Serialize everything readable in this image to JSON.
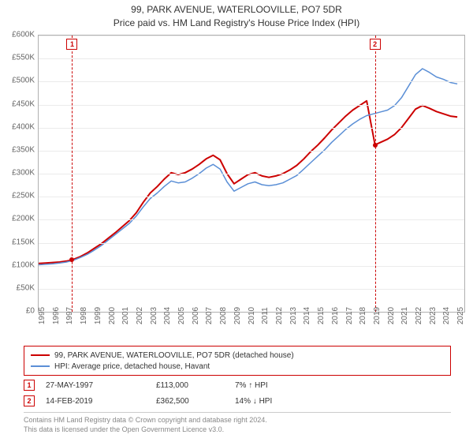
{
  "title": {
    "line1": "99, PARK AVENUE, WATERLOOVILLE, PO7 5DR",
    "line2": "Price paid vs. HM Land Registry's House Price Index (HPI)"
  },
  "chart": {
    "type": "line",
    "background_color": "#ffffff",
    "grid_color": "#ebebeb",
    "border_color": "#b0b0b0",
    "ylim": [
      0,
      600000
    ],
    "ytick_step": 50000,
    "y_ticks": [
      "£0",
      "£50K",
      "£100K",
      "£150K",
      "£200K",
      "£250K",
      "£300K",
      "£350K",
      "£400K",
      "£450K",
      "£500K",
      "£550K",
      "£600K"
    ],
    "x_ticks": [
      "1995",
      "1996",
      "1997",
      "1998",
      "1999",
      "2000",
      "2001",
      "2002",
      "2003",
      "2004",
      "2005",
      "2006",
      "2007",
      "2008",
      "2009",
      "2010",
      "2011",
      "2012",
      "2013",
      "2014",
      "2015",
      "2016",
      "2017",
      "2018",
      "2019",
      "2020",
      "2021",
      "2022",
      "2023",
      "2024",
      "2025"
    ],
    "xlim": [
      1995,
      2025.5
    ],
    "series": [
      {
        "name": "property",
        "label": "99, PARK AVENUE, WATERLOOVILLE, PO7 5DR (detached house)",
        "color": "#cc0000",
        "line_width": 2,
        "data": [
          [
            1995.0,
            105000
          ],
          [
            1995.5,
            106000
          ],
          [
            1996.0,
            107000
          ],
          [
            1996.5,
            108000
          ],
          [
            1997.0,
            110000
          ],
          [
            1997.4,
            113000
          ],
          [
            1997.5,
            114000
          ],
          [
            1998.0,
            120000
          ],
          [
            1998.5,
            128000
          ],
          [
            1999.0,
            138000
          ],
          [
            1999.5,
            148000
          ],
          [
            2000.0,
            160000
          ],
          [
            2000.5,
            172000
          ],
          [
            2001.0,
            185000
          ],
          [
            2001.5,
            198000
          ],
          [
            2002.0,
            215000
          ],
          [
            2002.5,
            238000
          ],
          [
            2003.0,
            258000
          ],
          [
            2003.5,
            272000
          ],
          [
            2004.0,
            288000
          ],
          [
            2004.5,
            302000
          ],
          [
            2005.0,
            298000
          ],
          [
            2005.5,
            302000
          ],
          [
            2006.0,
            310000
          ],
          [
            2006.5,
            320000
          ],
          [
            2007.0,
            332000
          ],
          [
            2007.5,
            340000
          ],
          [
            2008.0,
            330000
          ],
          [
            2008.5,
            300000
          ],
          [
            2009.0,
            278000
          ],
          [
            2009.5,
            288000
          ],
          [
            2010.0,
            298000
          ],
          [
            2010.5,
            302000
          ],
          [
            2011.0,
            295000
          ],
          [
            2011.5,
            292000
          ],
          [
            2012.0,
            295000
          ],
          [
            2012.5,
            300000
          ],
          [
            2013.0,
            308000
          ],
          [
            2013.5,
            318000
          ],
          [
            2014.0,
            332000
          ],
          [
            2014.5,
            348000
          ],
          [
            2015.0,
            362000
          ],
          [
            2015.5,
            378000
          ],
          [
            2016.0,
            395000
          ],
          [
            2016.5,
            410000
          ],
          [
            2017.0,
            425000
          ],
          [
            2017.5,
            438000
          ],
          [
            2018.0,
            448000
          ],
          [
            2018.5,
            458000
          ],
          [
            2019.1,
            362500
          ],
          [
            2019.5,
            368000
          ],
          [
            2020.0,
            375000
          ],
          [
            2020.5,
            385000
          ],
          [
            2021.0,
            400000
          ],
          [
            2021.5,
            420000
          ],
          [
            2022.0,
            440000
          ],
          [
            2022.5,
            448000
          ],
          [
            2023.0,
            442000
          ],
          [
            2023.5,
            435000
          ],
          [
            2024.0,
            430000
          ],
          [
            2024.5,
            425000
          ],
          [
            2025.0,
            423000
          ]
        ]
      },
      {
        "name": "hpi",
        "label": "HPI: Average price, detached house, Havant",
        "color": "#5b8fd6",
        "line_width": 1.5,
        "data": [
          [
            1995.0,
            102000
          ],
          [
            1995.5,
            103000
          ],
          [
            1996.0,
            104000
          ],
          [
            1996.5,
            106000
          ],
          [
            1997.0,
            108000
          ],
          [
            1997.5,
            112000
          ],
          [
            1998.0,
            118000
          ],
          [
            1998.5,
            125000
          ],
          [
            1999.0,
            134000
          ],
          [
            1999.5,
            144000
          ],
          [
            2000.0,
            156000
          ],
          [
            2000.5,
            168000
          ],
          [
            2001.0,
            180000
          ],
          [
            2001.5,
            192000
          ],
          [
            2002.0,
            208000
          ],
          [
            2002.5,
            228000
          ],
          [
            2003.0,
            246000
          ],
          [
            2003.5,
            258000
          ],
          [
            2004.0,
            272000
          ],
          [
            2004.5,
            284000
          ],
          [
            2005.0,
            280000
          ],
          [
            2005.5,
            282000
          ],
          [
            2006.0,
            290000
          ],
          [
            2006.5,
            300000
          ],
          [
            2007.0,
            312000
          ],
          [
            2007.5,
            320000
          ],
          [
            2008.0,
            310000
          ],
          [
            2008.5,
            282000
          ],
          [
            2009.0,
            262000
          ],
          [
            2009.5,
            270000
          ],
          [
            2010.0,
            278000
          ],
          [
            2010.5,
            282000
          ],
          [
            2011.0,
            276000
          ],
          [
            2011.5,
            274000
          ],
          [
            2012.0,
            276000
          ],
          [
            2012.5,
            280000
          ],
          [
            2013.0,
            288000
          ],
          [
            2013.5,
            296000
          ],
          [
            2014.0,
            310000
          ],
          [
            2014.5,
            324000
          ],
          [
            2015.0,
            338000
          ],
          [
            2015.5,
            352000
          ],
          [
            2016.0,
            368000
          ],
          [
            2016.5,
            382000
          ],
          [
            2017.0,
            396000
          ],
          [
            2017.5,
            408000
          ],
          [
            2018.0,
            418000
          ],
          [
            2018.5,
            426000
          ],
          [
            2019.0,
            430000
          ],
          [
            2019.5,
            434000
          ],
          [
            2020.0,
            438000
          ],
          [
            2020.5,
            448000
          ],
          [
            2021.0,
            465000
          ],
          [
            2021.5,
            490000
          ],
          [
            2022.0,
            515000
          ],
          [
            2022.5,
            528000
          ],
          [
            2023.0,
            520000
          ],
          [
            2023.5,
            510000
          ],
          [
            2024.0,
            505000
          ],
          [
            2024.5,
            498000
          ],
          [
            2025.0,
            495000
          ]
        ]
      }
    ],
    "event_markers": [
      {
        "n": "1",
        "x": 1997.4,
        "color": "#cc0000"
      },
      {
        "n": "2",
        "x": 2019.1,
        "color": "#cc0000"
      }
    ],
    "sale_points": [
      {
        "x": 1997.4,
        "y": 113000,
        "color": "#cc0000"
      },
      {
        "x": 2019.1,
        "y": 362500,
        "color": "#cc0000"
      }
    ]
  },
  "legend": {
    "border_color": "#cc0000",
    "items": [
      {
        "color": "#cc0000",
        "label": "99, PARK AVENUE, WATERLOOVILLE, PO7 5DR (detached house)"
      },
      {
        "color": "#5b8fd6",
        "label": "HPI: Average price, detached house, Havant"
      }
    ]
  },
  "events_table": [
    {
      "n": "1",
      "color": "#cc0000",
      "date": "27-MAY-1997",
      "price": "£113,000",
      "delta": "7% ↑ HPI"
    },
    {
      "n": "2",
      "color": "#cc0000",
      "date": "14-FEB-2019",
      "price": "£362,500",
      "delta": "14% ↓ HPI"
    }
  ],
  "footer": {
    "line1": "Contains HM Land Registry data © Crown copyright and database right 2024.",
    "line2": "This data is licensed under the Open Government Licence v3.0."
  }
}
